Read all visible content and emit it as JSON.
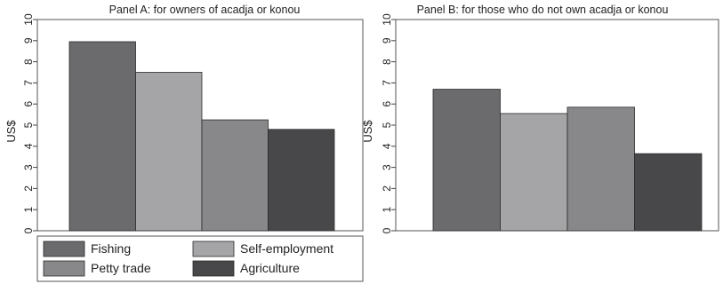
{
  "chart_data": [
    {
      "type": "bar",
      "title": "Panel A: for owners of acadja or konou",
      "ylabel": "US$",
      "ylim": [
        0,
        10
      ],
      "yticks": [
        0,
        1,
        2,
        3,
        4,
        5,
        6,
        7,
        8,
        9,
        10
      ],
      "grid": false,
      "series": [
        {
          "name": "Fishing",
          "value": 8.95,
          "color": "#6b6b6e"
        },
        {
          "name": "Self-employment",
          "value": 7.5,
          "color": "#a5a5a7"
        },
        {
          "name": "Petty trade",
          "value": 5.25,
          "color": "#88888a"
        },
        {
          "name": "Agriculture",
          "value": 4.8,
          "color": "#48484a"
        }
      ]
    },
    {
      "type": "bar",
      "title": "Panel B: for those who do not own acadja or konou",
      "ylabel": "US$",
      "ylim": [
        0,
        10
      ],
      "yticks": [
        0,
        1,
        2,
        3,
        4,
        5,
        6,
        7,
        8,
        9,
        10
      ],
      "grid": false,
      "series": [
        {
          "name": "Fishing",
          "value": 6.7,
          "color": "#6b6b6e"
        },
        {
          "name": "Self-employment",
          "value": 5.55,
          "color": "#a5a5a7"
        },
        {
          "name": "Petty trade",
          "value": 5.85,
          "color": "#88888a"
        },
        {
          "name": "Agriculture",
          "value": 3.65,
          "color": "#48484a"
        }
      ]
    }
  ],
  "legend": {
    "placement": "bottom-left",
    "items": [
      {
        "label": "Fishing",
        "color": "#6b6b6e"
      },
      {
        "label": "Self-employment",
        "color": "#a5a5a7"
      },
      {
        "label": "Petty trade",
        "color": "#88888a"
      },
      {
        "label": "Agriculture",
        "color": "#48484a"
      }
    ]
  }
}
